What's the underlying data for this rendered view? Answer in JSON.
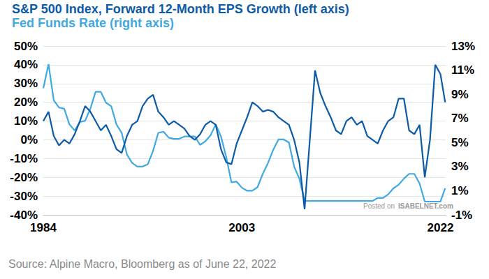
{
  "chart_data": {
    "type": "line",
    "legend": "top-left",
    "grid": true,
    "annotations": [
      "Source: Alpine Macro, Bloomberg as of June 22, 2022",
      "Posted on",
      "ISABELNET.com"
    ],
    "x": [
      1984,
      1984.5,
      1985,
      1985.5,
      1986,
      1986.5,
      1987,
      1987.5,
      1988,
      1988.5,
      1989,
      1989.5,
      1990,
      1990.5,
      1991,
      1991.5,
      1992,
      1992.5,
      1993,
      1993.5,
      1994,
      1994.5,
      1995,
      1995.5,
      1996,
      1996.5,
      1997,
      1997.5,
      1998,
      1998.5,
      1999,
      1999.5,
      2000,
      2000.5,
      2001,
      2001.5,
      2002,
      2002.5,
      2003,
      2003.5,
      2004,
      2004.5,
      2005,
      2005.5,
      2006,
      2006.5,
      2007,
      2007.5,
      2008,
      2008.5,
      2009,
      2009.5,
      2010,
      2010.5,
      2011,
      2011.5,
      2012,
      2012.5,
      2013,
      2013.5,
      2014,
      2014.5,
      2015,
      2015.5,
      2016,
      2016.5,
      2017,
      2017.5,
      2018,
      2018.5,
      2019,
      2019.5,
      2020,
      2020.5,
      2021,
      2021.5,
      2022,
      2022.45
    ],
    "xlim": [
      1984,
      2022.5
    ],
    "xticks": [
      1984,
      2003,
      2022
    ],
    "ylim": [
      -40,
      50
    ],
    "yticks": [
      {
        "value": -40,
        "label": "-40%"
      },
      {
        "value": -30,
        "label": "-30%"
      },
      {
        "value": -20,
        "label": "-20%"
      },
      {
        "value": -10,
        "label": "-10%"
      },
      {
        "value": 0,
        "label": "0%"
      },
      {
        "value": 10,
        "label": "10%"
      },
      {
        "value": 20,
        "label": "20%"
      },
      {
        "value": 30,
        "label": "30%"
      },
      {
        "value": 40,
        "label": "40%"
      },
      {
        "value": 50,
        "label": "50%"
      }
    ],
    "y2lim": [
      -1,
      13
    ],
    "y2ticks": [
      {
        "value": -1,
        "label": "-1%"
      },
      {
        "value": 1,
        "label": "1%"
      },
      {
        "value": 3,
        "label": "3%"
      },
      {
        "value": 5,
        "label": "5%"
      },
      {
        "value": 7,
        "label": "7%"
      },
      {
        "value": 9,
        "label": "9%"
      },
      {
        "value": 11,
        "label": "11%"
      },
      {
        "value": 13,
        "label": "13%"
      }
    ],
    "series": [
      {
        "name": "S&P 500 Index, Forward 12-Month EPS Growth (left axis)",
        "color": "#0d5ba6",
        "values": [
          10,
          15,
          2,
          -3,
          0,
          -2,
          3,
          10,
          18,
          15,
          10,
          5,
          8,
          2,
          -5,
          -7,
          2,
          8,
          10,
          18,
          22,
          24,
          15,
          12,
          8,
          10,
          8,
          6,
          2,
          0,
          3,
          8,
          10,
          8,
          -5,
          -12,
          -13,
          -2,
          5,
          12,
          20,
          18,
          15,
          16,
          15,
          12,
          10,
          8,
          0,
          -12,
          -37,
          0,
          37,
          25,
          18,
          12,
          5,
          3,
          10,
          12,
          8,
          10,
          2,
          0,
          -2,
          5,
          10,
          12,
          22,
          22,
          5,
          3,
          8,
          -20,
          0,
          40,
          35,
          20
        ]
      },
      {
        "name": "Fed Funds Rate (right axis)",
        "color": "#3fa9e0",
        "axis": "y2",
        "values": [
          9.5,
          11.5,
          8.5,
          7.9,
          7.8,
          6.5,
          6.0,
          6.7,
          6.8,
          7.8,
          9.2,
          9.2,
          8.3,
          8.0,
          6.5,
          5.8,
          4.0,
          3.3,
          3.0,
          3.0,
          3.2,
          4.3,
          5.8,
          5.9,
          5.4,
          5.3,
          5.3,
          5.5,
          5.5,
          5.5,
          4.8,
          5.1,
          5.6,
          6.5,
          5.5,
          3.8,
          1.7,
          1.75,
          1.25,
          1.0,
          1.0,
          1.3,
          2.4,
          3.3,
          4.4,
          5.25,
          5.25,
          5.0,
          3.0,
          2.0,
          0.15,
          0.15,
          0.15,
          0.15,
          0.15,
          0.15,
          0.15,
          0.15,
          0.15,
          0.15,
          0.15,
          0.15,
          0.15,
          0.15,
          0.4,
          0.4,
          0.7,
          1.2,
          1.5,
          2.0,
          2.4,
          2.4,
          1.6,
          0.1,
          0.1,
          0.1,
          0.1,
          1.2
        ]
      }
    ]
  }
}
